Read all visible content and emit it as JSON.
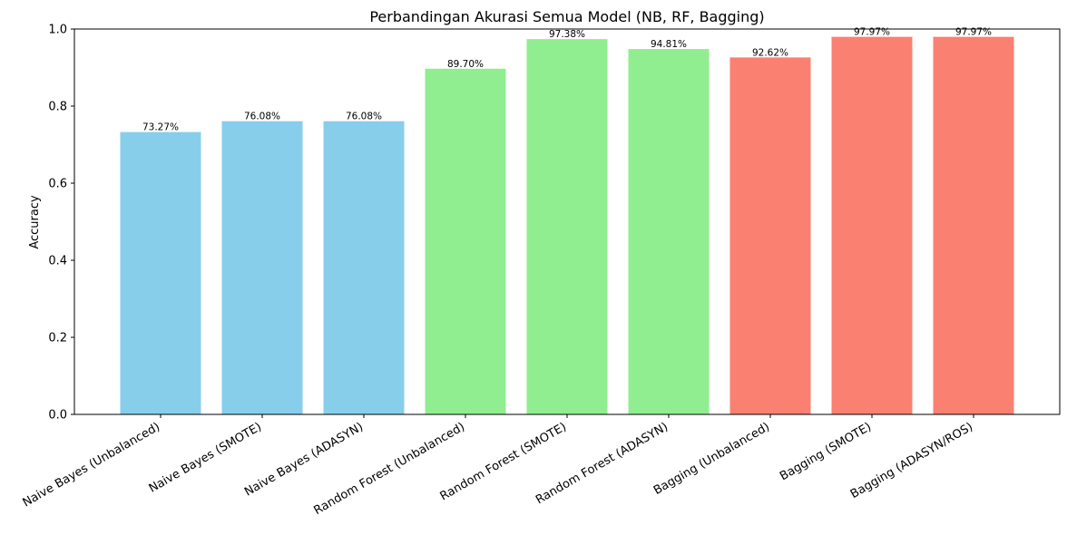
{
  "chart_data": {
    "type": "bar",
    "title": "Perbandingan Akurasi Semua Model (NB, RF, Bagging)",
    "xlabel": "",
    "ylabel": "Accuracy",
    "ylim": [
      0,
      1.0
    ],
    "yticks": [
      "0.0",
      "0.2",
      "0.4",
      "0.6",
      "0.8",
      "1.0"
    ],
    "grid": false,
    "categories": [
      "Naive Bayes (Unbalanced)",
      "Naive Bayes (SMOTE)",
      "Naive Bayes (ADASYN)",
      "Random Forest (Unbalanced)",
      "Random Forest (SMOTE)",
      "Random Forest (ADASYN)",
      "Bagging (Unbalanced)",
      "Bagging (SMOTE)",
      "Bagging (ADASYN/ROS)"
    ],
    "values": [
      0.7327,
      0.7608,
      0.7608,
      0.897,
      0.9738,
      0.9481,
      0.9262,
      0.9797,
      0.9797
    ],
    "data_labels": [
      "73.27%",
      "76.08%",
      "76.08%",
      "89.70%",
      "97.38%",
      "94.81%",
      "92.62%",
      "97.97%",
      "97.97%"
    ],
    "colors": [
      "#87ceeb",
      "#87ceeb",
      "#87ceeb",
      "#90ee90",
      "#90ee90",
      "#90ee90",
      "#fa8072",
      "#fa8072",
      "#fa8072"
    ]
  }
}
